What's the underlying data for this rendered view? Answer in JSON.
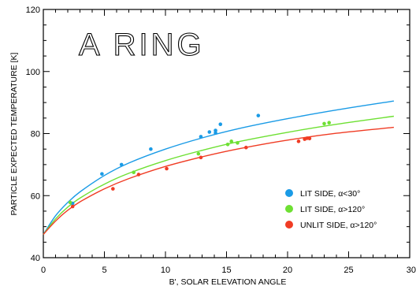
{
  "chart_data": {
    "type": "scatter",
    "title": "A RING",
    "xlabel": "B', SOLAR ELEVATION ANGLE",
    "ylabel": "PARTICLE EXPECTED TEMPERATURE [K]",
    "xlim": [
      0,
      30
    ],
    "ylim": [
      40,
      120
    ],
    "x_ticks": [
      "0",
      "5",
      "10",
      "15",
      "20",
      "25",
      "30"
    ],
    "y_ticks": [
      "40",
      "60",
      "80",
      "100",
      "120"
    ],
    "legend_position": "lower-right",
    "series": [
      {
        "name": "LIT SIDE, α<30°",
        "color": "#1a9be6",
        "points": [
          [
            2.4,
            57.5
          ],
          [
            4.8,
            67
          ],
          [
            6.4,
            70
          ],
          [
            8.8,
            75
          ],
          [
            12.9,
            79
          ],
          [
            13.6,
            80.5
          ],
          [
            14.1,
            80.2
          ],
          [
            14.1,
            81
          ],
          [
            14.5,
            83
          ],
          [
            17.6,
            85.8
          ]
        ],
        "fit": [
          [
            0,
            47.5
          ],
          [
            1,
            53.5
          ],
          [
            2,
            57.8
          ],
          [
            3,
            61.2
          ],
          [
            5,
            66.5
          ],
          [
            7,
            70.5
          ],
          [
            10,
            75
          ],
          [
            13,
            78.6
          ],
          [
            16,
            81.6
          ],
          [
            20,
            84.8
          ],
          [
            24,
            87.6
          ],
          [
            28.7,
            90.5
          ]
        ]
      },
      {
        "name": "LIT SIDE, α>120°",
        "color": "#6ee033",
        "points": [
          [
            2.2,
            57.8
          ],
          [
            7.4,
            67.5
          ],
          [
            12.7,
            73.5
          ],
          [
            15.1,
            76.5
          ],
          [
            15.4,
            77.5
          ],
          [
            15.9,
            77
          ],
          [
            23,
            83.2
          ],
          [
            23.4,
            83.5
          ]
        ],
        "fit": [
          [
            0,
            47.5
          ],
          [
            1,
            52.5
          ],
          [
            2,
            56.3
          ],
          [
            3,
            59.2
          ],
          [
            5,
            63.7
          ],
          [
            7,
            67.2
          ],
          [
            10,
            71.3
          ],
          [
            13,
            74.6
          ],
          [
            16,
            77.4
          ],
          [
            20,
            80.4
          ],
          [
            24,
            83
          ],
          [
            28.7,
            85.6
          ]
        ]
      },
      {
        "name": "UNLIT SIDE, α>120°",
        "color": "#f03c24",
        "points": [
          [
            2.4,
            56.5
          ],
          [
            5.7,
            62.2
          ],
          [
            7.8,
            66.8
          ],
          [
            10.1,
            68.7
          ],
          [
            12.9,
            72.3
          ],
          [
            16.6,
            75.5
          ],
          [
            20.9,
            77.5
          ],
          [
            21.4,
            78.2
          ],
          [
            21.6,
            78.5
          ],
          [
            21.8,
            78.4
          ]
        ],
        "fit": [
          [
            0,
            47.5
          ],
          [
            1,
            51.8
          ],
          [
            2,
            55.3
          ],
          [
            3,
            58
          ],
          [
            5,
            62.2
          ],
          [
            7,
            65.5
          ],
          [
            10,
            69.4
          ],
          [
            13,
            72.5
          ],
          [
            16,
            75.1
          ],
          [
            20,
            77.9
          ],
          [
            24,
            80.1
          ],
          [
            28.7,
            82
          ]
        ]
      }
    ]
  }
}
